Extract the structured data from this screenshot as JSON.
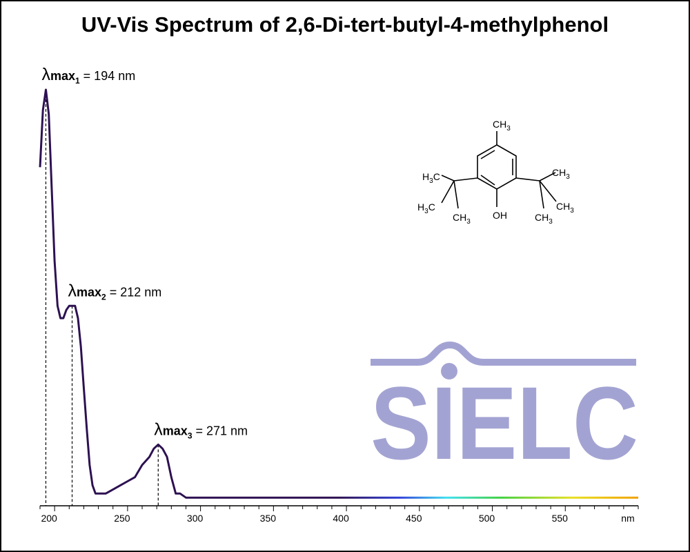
{
  "chart_data": {
    "type": "line",
    "title": "UV-Vis Spectrum of 2,6-Di-tert-butyl-4-methylphenol",
    "x_label": "nm",
    "x": [
      190,
      192,
      194,
      196,
      198,
      200,
      202,
      204,
      206,
      208,
      210,
      212,
      214,
      216,
      218,
      220,
      222,
      224,
      226,
      228,
      230,
      235,
      240,
      245,
      250,
      255,
      260,
      265,
      268,
      271,
      274,
      277,
      280,
      283,
      286,
      290,
      300,
      350,
      400,
      450,
      500,
      550,
      600
    ],
    "series": [
      {
        "color": "#2d1152",
        "values": [
          0.81,
          0.95,
          1.0,
          0.94,
          0.76,
          0.58,
          0.47,
          0.44,
          0.44,
          0.46,
          0.47,
          0.47,
          0.47,
          0.44,
          0.37,
          0.27,
          0.17,
          0.08,
          0.03,
          0.01,
          0.01,
          0.01,
          0.02,
          0.03,
          0.04,
          0.05,
          0.08,
          0.1,
          0.12,
          0.13,
          0.12,
          0.1,
          0.05,
          0.01,
          0.01,
          0,
          0,
          0,
          0,
          0,
          0,
          0,
          0
        ]
      }
    ],
    "xlim": [
      190,
      600
    ],
    "ylim": [
      -0.02,
      1.0
    ],
    "xticks": [
      200,
      250,
      300,
      350,
      400,
      450,
      500,
      550
    ],
    "xminor_ticks": [
      190,
      210,
      220,
      230,
      240,
      260,
      270,
      280,
      290,
      310,
      320,
      330,
      340,
      360,
      370,
      380,
      390,
      410,
      420,
      430,
      440,
      460,
      470,
      480,
      490,
      510,
      520,
      530,
      540,
      560,
      570,
      580,
      590,
      600
    ],
    "annotations": [
      {
        "x": 194,
        "symbol": "λ",
        "label": "max",
        "index": "1",
        "text": " = 194 nm"
      },
      {
        "x": 212,
        "symbol": "λ",
        "label": "max",
        "index": "2",
        "text": " = 212 nm"
      },
      {
        "x": 271,
        "symbol": "λ",
        "label": "max",
        "index": "3",
        "text": " = 271 nm"
      }
    ]
  },
  "structure": {
    "labels": [
      [
        "CH",
        "3"
      ],
      [
        "H",
        "3",
        "C"
      ],
      [
        "H",
        "3",
        "C"
      ],
      [
        "CH",
        "3"
      ],
      [
        "CH",
        "3"
      ],
      [
        "CH",
        "3"
      ],
      [
        "CH",
        "3"
      ],
      [
        "OH"
      ]
    ]
  },
  "logo": "SIELC"
}
